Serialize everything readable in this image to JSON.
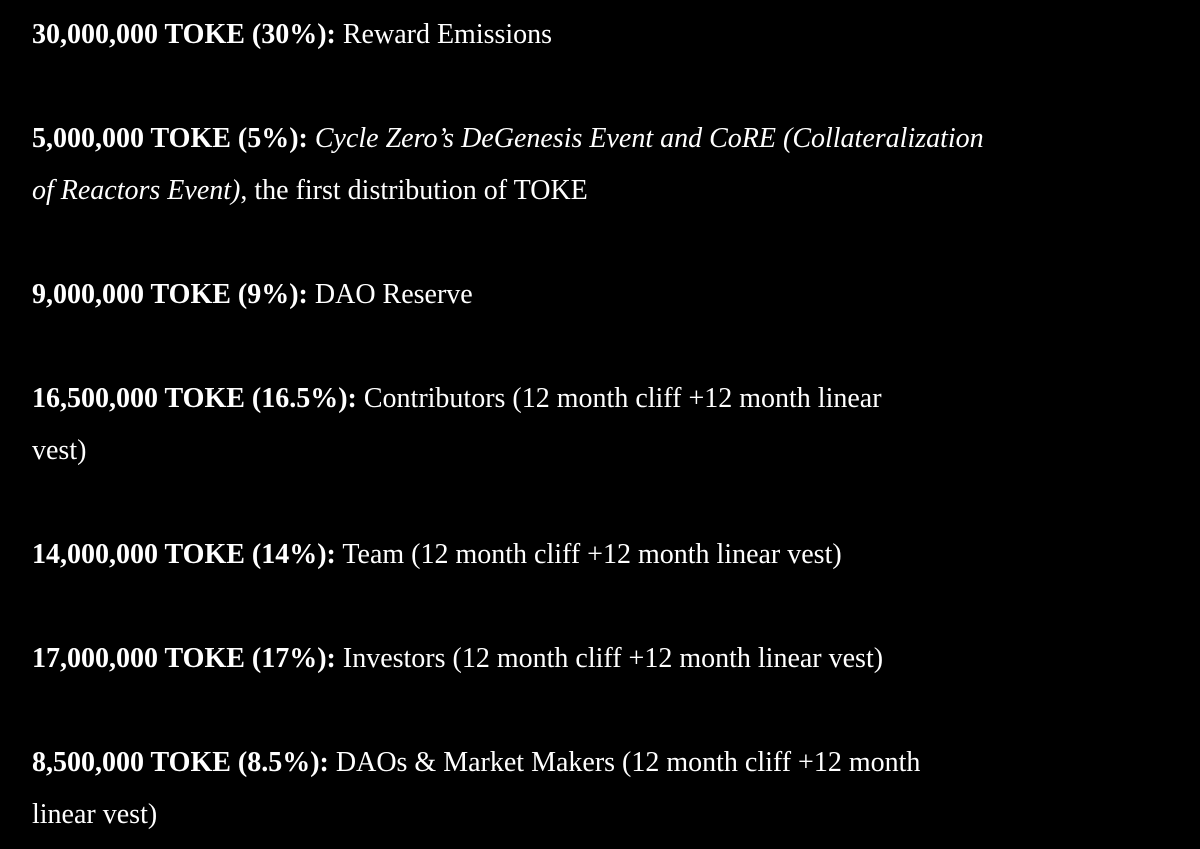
{
  "colors": {
    "background": "#000000",
    "text": "#ffffff"
  },
  "document": {
    "topic": "TOKE token allocation list",
    "paragraphs": [
      {
        "label": "30,000,000 TOKE (30%):",
        "text": " Reward Emissions"
      },
      {
        "label": "5,000,000 TOKE (5%):",
        "italic_1": " Cycle Zero’s DeGenesis Event and CoRE (Collateralization",
        "italic_2": "of Reactors Event)",
        "text": ", the first distribution of TOKE"
      },
      {
        "label": "9,000,000 TOKE (9%):",
        "text": " DAO Reserve"
      },
      {
        "label": "16,500,000 TOKE (16.5%):",
        "text_1": " Contributors (12 month cliff +12 month linear",
        "text_2": "vest)"
      },
      {
        "label": "14,000,000 TOKE (14%):",
        "text": " Team (12 month cliff +12 month linear vest)"
      },
      {
        "label": "17,000,000 TOKE (17%):",
        "text": " Investors (12 month cliff +12 month linear vest)"
      },
      {
        "label": "8,500,000 TOKE (8.5%):",
        "text_1": " DAOs & Market Makers (12 month cliff +12 month",
        "text_2": "linear vest)"
      }
    ]
  }
}
